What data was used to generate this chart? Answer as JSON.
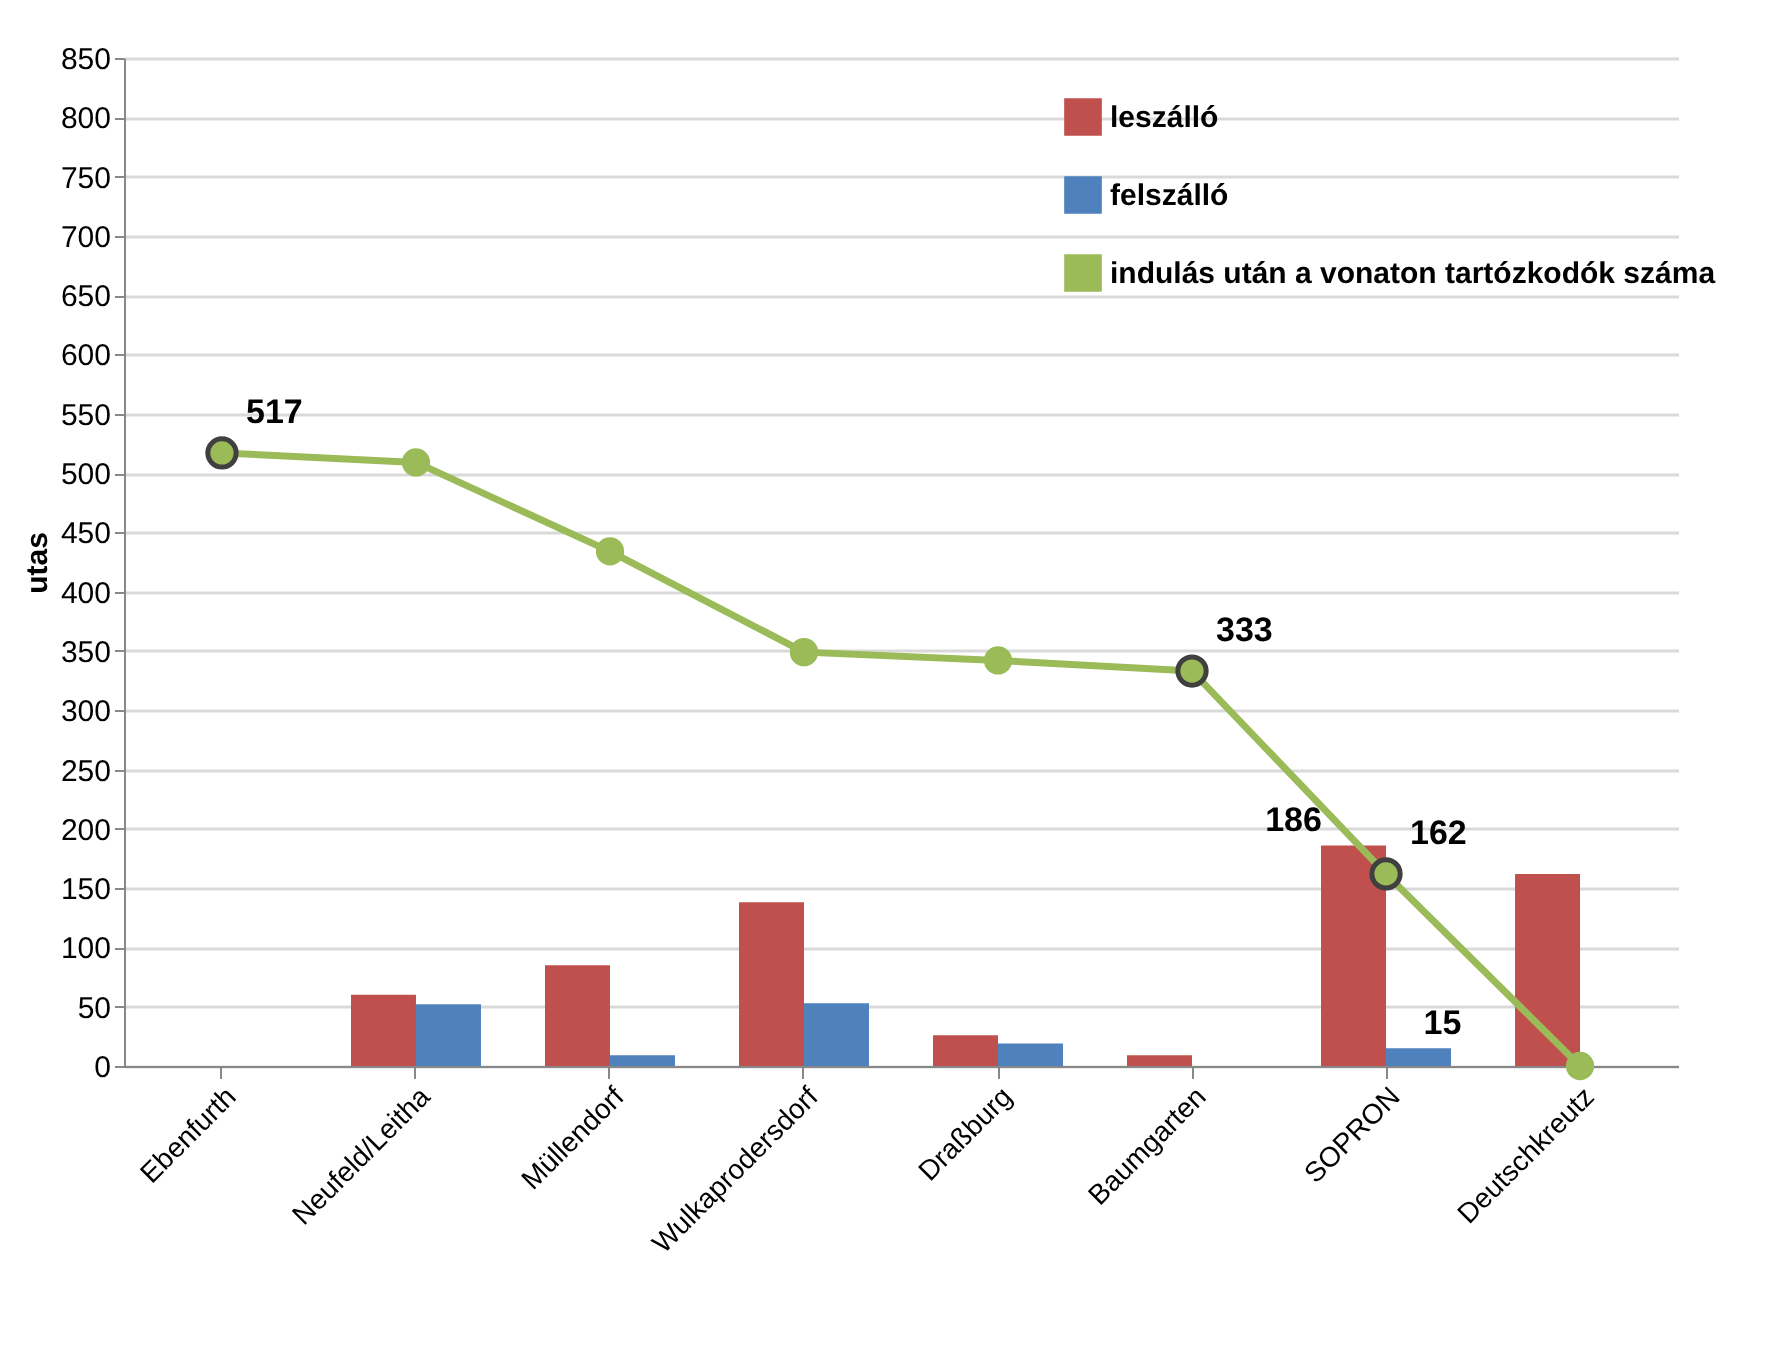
{
  "chart_data": {
    "type": "bar",
    "ylabel": "utas",
    "categories": [
      "Ebenfurth",
      "Neufeld/Leitha",
      "Müllendorf",
      "Wulkaprodersdorf",
      "Draßburg",
      "Baumgarten",
      "SOPRON",
      "Deutschkreutz"
    ],
    "series": [
      {
        "name": "leszálló",
        "type": "bar",
        "color": "#c0504d",
        "values": [
          0,
          60,
          85,
          138,
          26,
          9,
          186,
          162
        ],
        "value_labels": [
          null,
          null,
          null,
          null,
          null,
          null,
          "186",
          null
        ]
      },
      {
        "name": "felszálló",
        "color": "#4f81bd",
        "values": [
          0,
          52,
          9,
          53,
          19,
          0,
          15,
          0
        ],
        "value_labels": [
          null,
          null,
          null,
          null,
          null,
          null,
          "15",
          null
        ]
      },
      {
        "name": "indulás után a vonaton tartózkodók száma",
        "type": "line",
        "color": "#9bbb59",
        "marker": "circle",
        "values": [
          517,
          509,
          434,
          349,
          342,
          333,
          162,
          0
        ],
        "value_labels": [
          "517",
          null,
          null,
          null,
          null,
          "333",
          "162",
          null
        ]
      }
    ],
    "ylim": [
      0,
      850
    ],
    "yticks": [
      0,
      50,
      100,
      150,
      200,
      250,
      300,
      350,
      400,
      450,
      500,
      550,
      600,
      650,
      700,
      750,
      800,
      850
    ],
    "grid": "y",
    "legend": "top right"
  }
}
